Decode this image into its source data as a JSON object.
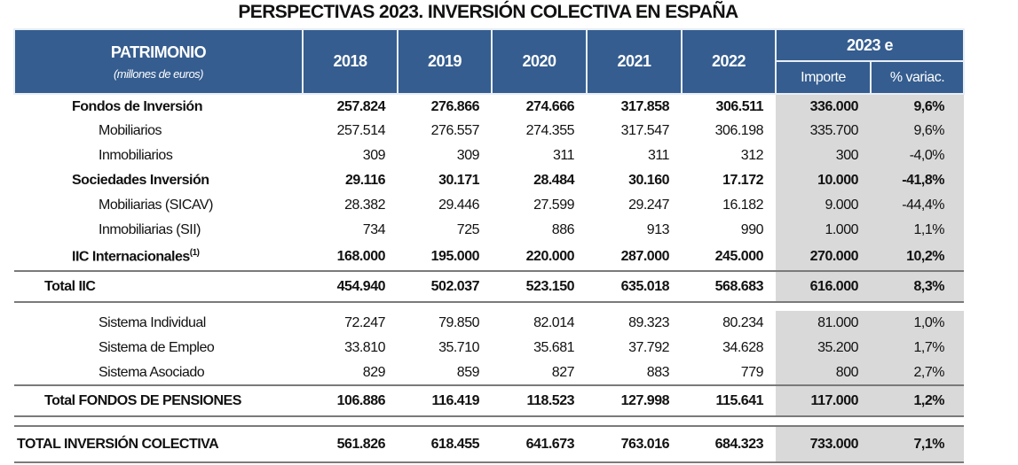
{
  "title": "PERSPECTIVAS 2023. INVERSIÓN COLECTIVA EN ESPAÑA",
  "header": {
    "label": "PATRIMONIO",
    "unit": "(millones de euros)",
    "years": [
      "2018",
      "2019",
      "2020",
      "2021",
      "2022"
    ],
    "estimate": "2023 e",
    "importe": "Importe",
    "variac": "% variac."
  },
  "colors": {
    "header_bg": "#355d8f",
    "shade": "#d9d9d9"
  },
  "rows": [
    {
      "label": "Fondos de Inversión",
      "style": "group",
      "values": [
        "257.824",
        "276.866",
        "274.666",
        "317.858",
        "306.511"
      ],
      "importe": "336.000",
      "variac": "9,6%"
    },
    {
      "label": "Mobiliarios",
      "style": "sub",
      "values": [
        "257.514",
        "276.557",
        "274.355",
        "317.547",
        "306.198"
      ],
      "importe": "335.700",
      "variac": "9,6%"
    },
    {
      "label": "Inmobiliarios",
      "style": "sub",
      "values": [
        "309",
        "309",
        "311",
        "311",
        "312"
      ],
      "importe": "300",
      "variac": "-4,0%"
    },
    {
      "label": "Sociedades Inversión",
      "style": "group",
      "values": [
        "29.116",
        "30.171",
        "28.484",
        "30.160",
        "17.172"
      ],
      "importe": "10.000",
      "variac": "-41,8%"
    },
    {
      "label": "Mobiliarias (SICAV)",
      "style": "sub",
      "values": [
        "28.382",
        "29.446",
        "27.599",
        "29.247",
        "16.182"
      ],
      "importe": "9.000",
      "variac": "-44,4%"
    },
    {
      "label": "Inmobiliarias (SII)",
      "style": "sub",
      "values": [
        "734",
        "725",
        "886",
        "913",
        "990"
      ],
      "importe": "1.000",
      "variac": "1,1%"
    },
    {
      "label": "IIC Internacionales",
      "sup": "(1)",
      "style": "group",
      "values": [
        "168.000",
        "195.000",
        "220.000",
        "287.000",
        "245.000"
      ],
      "importe": "270.000",
      "variac": "10,2%"
    },
    {
      "label": "Total IIC",
      "style": "total",
      "values": [
        "454.940",
        "502.037",
        "523.150",
        "635.018",
        "568.683"
      ],
      "importe": "616.000",
      "variac": "8,3%"
    },
    {
      "label": "Sistema Individual",
      "style": "sub",
      "values": [
        "72.247",
        "79.850",
        "82.014",
        "89.323",
        "80.234"
      ],
      "importe": "81.000",
      "variac": "1,0%"
    },
    {
      "label": "Sistema de Empleo",
      "style": "sub",
      "values": [
        "33.810",
        "35.710",
        "35.681",
        "37.792",
        "34.628"
      ],
      "importe": "35.200",
      "variac": "1,7%"
    },
    {
      "label": "Sistema Asociado",
      "style": "sub",
      "values": [
        "829",
        "859",
        "827",
        "883",
        "779"
      ],
      "importe": "800",
      "variac": "2,7%"
    },
    {
      "label": "Total FONDOS DE PENSIONES",
      "style": "total",
      "values": [
        "106.886",
        "116.419",
        "118.523",
        "127.998",
        "115.641"
      ],
      "importe": "117.000",
      "variac": "1,2%"
    },
    {
      "label": "TOTAL INVERSIÓN COLECTIVA",
      "style": "grand",
      "values": [
        "561.826",
        "618.455",
        "641.673",
        "763.016",
        "684.323"
      ],
      "importe": "733.000",
      "variac": "7,1%"
    }
  ]
}
